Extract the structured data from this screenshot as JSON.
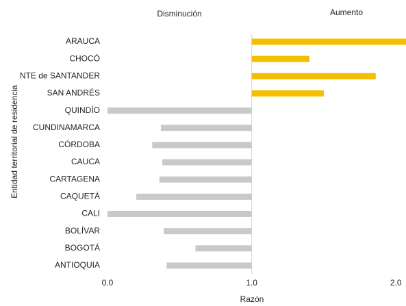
{
  "chart_data": {
    "type": "diverging-bar",
    "annotations": [
      "Disminución",
      "Aumento"
    ],
    "x_label": "Razón",
    "y_label": "Entidad territorial de residencia",
    "categories": [
      "ARAUCA",
      "CHOCÓ",
      "NTE de SANTANDER",
      "SAN ANDRÉS",
      "QUINDÍO",
      "CUNDINAMARCA",
      "CÓRDOBA",
      "CAUCA",
      "CARTAGENA",
      "CAQUETÁ",
      "CALI",
      "BOLÍVAR",
      "BOGOTÁ",
      "ANTIOQUIA"
    ],
    "values": [
      2.07,
      1.4,
      1.86,
      1.5,
      0.0,
      0.37,
      0.31,
      0.38,
      0.36,
      0.2,
      0.0,
      0.39,
      0.61,
      0.41
    ],
    "base": 1.0,
    "increase_color": "#f5be00",
    "decrease_color": "#c9c9c9",
    "xlim": [
      0,
      2.07
    ],
    "xticks": [
      {
        "value": 0,
        "label": "0.0"
      },
      {
        "value": 1,
        "label": "1.0"
      },
      {
        "value": 2,
        "label": "2.0"
      }
    ]
  }
}
